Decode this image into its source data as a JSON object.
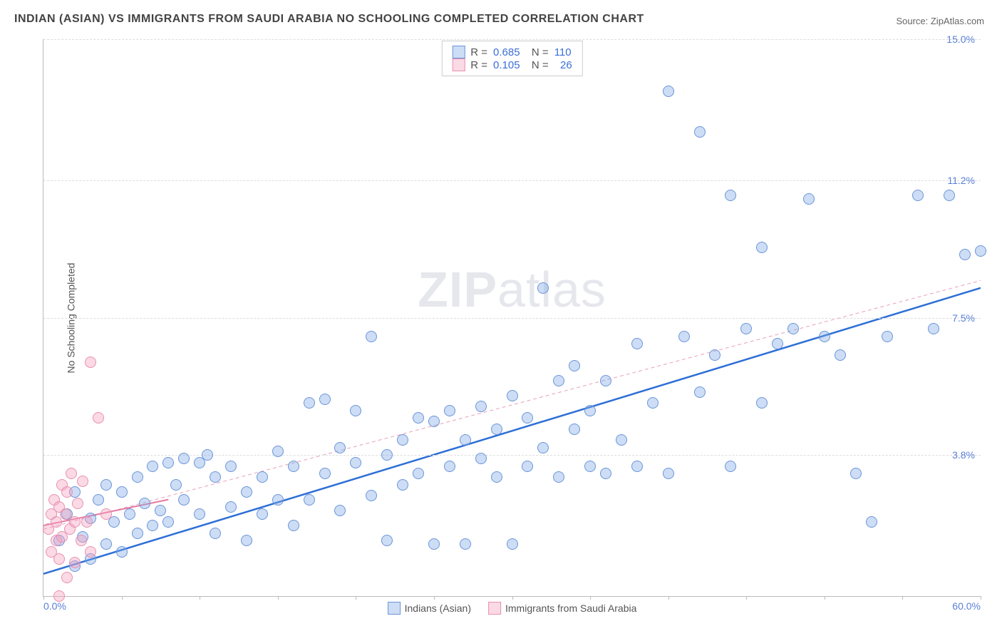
{
  "title": "INDIAN (ASIAN) VS IMMIGRANTS FROM SAUDI ARABIA NO SCHOOLING COMPLETED CORRELATION CHART",
  "source": "Source: ZipAtlas.com",
  "ylabel": "No Schooling Completed",
  "watermark_bold": "ZIP",
  "watermark_light": "atlas",
  "chart": {
    "type": "scatter",
    "xlim": [
      0,
      60
    ],
    "ylim": [
      0,
      15
    ],
    "yticks": [
      {
        "value": 3.8,
        "label": "3.8%"
      },
      {
        "value": 7.5,
        "label": "7.5%"
      },
      {
        "value": 11.2,
        "label": "11.2%"
      },
      {
        "value": 15.0,
        "label": "15.0%"
      }
    ],
    "xtick_left": "0.0%",
    "xtick_right": "60.0%",
    "background_color": "#ffffff",
    "grid_color": "#dddddd",
    "series": [
      {
        "name": "Indians (Asian)",
        "color_fill": "#9ab8e8",
        "color_stroke": "#6a95d8",
        "marker_size": 16,
        "R": "0.685",
        "N": "110",
        "regression": {
          "x1": 0,
          "y1": 0.6,
          "x2": 60,
          "y2": 8.3,
          "stroke": "#2d6fd6",
          "width": 2.5,
          "dash": "none"
        },
        "regression_ext": {
          "x1": 0,
          "y1": 1.8,
          "x2": 60,
          "y2": 8.5,
          "stroke": "#e8a0b8",
          "width": 1,
          "dash": "5,4"
        },
        "points": [
          [
            1,
            1.5
          ],
          [
            1.5,
            2.2
          ],
          [
            2,
            0.8
          ],
          [
            2,
            2.8
          ],
          [
            2.5,
            1.6
          ],
          [
            3,
            2.1
          ],
          [
            3,
            1.0
          ],
          [
            3.5,
            2.6
          ],
          [
            4,
            1.4
          ],
          [
            4,
            3.0
          ],
          [
            4.5,
            2.0
          ],
          [
            5,
            1.2
          ],
          [
            5,
            2.8
          ],
          [
            5.5,
            2.2
          ],
          [
            6,
            1.7
          ],
          [
            6,
            3.2
          ],
          [
            6.5,
            2.5
          ],
          [
            7,
            1.9
          ],
          [
            7,
            3.5
          ],
          [
            7.5,
            2.3
          ],
          [
            8,
            3.6
          ],
          [
            8,
            2.0
          ],
          [
            8.5,
            3.0
          ],
          [
            9,
            2.6
          ],
          [
            9,
            3.7
          ],
          [
            10,
            3.6
          ],
          [
            10,
            2.2
          ],
          [
            10.5,
            3.8
          ],
          [
            11,
            1.7
          ],
          [
            11,
            3.2
          ],
          [
            12,
            2.4
          ],
          [
            12,
            3.5
          ],
          [
            13,
            2.8
          ],
          [
            13,
            1.5
          ],
          [
            14,
            3.2
          ],
          [
            14,
            2.2
          ],
          [
            15,
            2.6
          ],
          [
            15,
            3.9
          ],
          [
            16,
            1.9
          ],
          [
            16,
            3.5
          ],
          [
            17,
            5.2
          ],
          [
            17,
            2.6
          ],
          [
            18,
            3.3
          ],
          [
            18,
            5.3
          ],
          [
            19,
            2.3
          ],
          [
            19,
            4.0
          ],
          [
            20,
            3.6
          ],
          [
            20,
            5.0
          ],
          [
            21,
            7.0
          ],
          [
            21,
            2.7
          ],
          [
            22,
            3.8
          ],
          [
            22,
            1.5
          ],
          [
            23,
            4.2
          ],
          [
            23,
            3.0
          ],
          [
            24,
            4.8
          ],
          [
            24,
            3.3
          ],
          [
            25,
            1.4
          ],
          [
            25,
            4.7
          ],
          [
            26,
            5.0
          ],
          [
            26,
            3.5
          ],
          [
            27,
            4.2
          ],
          [
            27,
            1.4
          ],
          [
            28,
            5.1
          ],
          [
            28,
            3.7
          ],
          [
            29,
            4.5
          ],
          [
            29,
            3.2
          ],
          [
            30,
            5.4
          ],
          [
            30,
            1.4
          ],
          [
            31,
            4.8
          ],
          [
            31,
            3.5
          ],
          [
            32,
            8.3
          ],
          [
            32,
            4.0
          ],
          [
            33,
            5.8
          ],
          [
            33,
            3.2
          ],
          [
            34,
            4.5
          ],
          [
            34,
            6.2
          ],
          [
            35,
            3.5
          ],
          [
            35,
            5.0
          ],
          [
            36,
            3.3
          ],
          [
            36,
            5.8
          ],
          [
            37,
            4.2
          ],
          [
            38,
            6.8
          ],
          [
            38,
            3.5
          ],
          [
            39,
            5.2
          ],
          [
            40,
            13.6
          ],
          [
            40,
            3.3
          ],
          [
            41,
            7.0
          ],
          [
            42,
            5.5
          ],
          [
            42,
            12.5
          ],
          [
            43,
            6.5
          ],
          [
            44,
            10.8
          ],
          [
            44,
            3.5
          ],
          [
            45,
            7.2
          ],
          [
            46,
            5.2
          ],
          [
            46,
            9.4
          ],
          [
            47,
            6.8
          ],
          [
            48,
            7.2
          ],
          [
            49,
            10.7
          ],
          [
            50,
            7.0
          ],
          [
            51,
            6.5
          ],
          [
            52,
            3.3
          ],
          [
            53,
            2.0
          ],
          [
            54,
            7.0
          ],
          [
            56,
            10.8
          ],
          [
            57,
            7.2
          ],
          [
            58,
            10.8
          ],
          [
            59,
            9.2
          ],
          [
            60,
            9.3
          ]
        ]
      },
      {
        "name": "Immigrants from Saudi Arabia",
        "color_fill": "#f5c0d2",
        "color_stroke": "#e890b0",
        "marker_size": 16,
        "R": "0.105",
        "N": "26",
        "regression": {
          "x1": 0,
          "y1": 1.9,
          "x2": 8,
          "y2": 2.6,
          "stroke": "#e47aa0",
          "width": 2,
          "dash": "none"
        },
        "points": [
          [
            0.3,
            1.8
          ],
          [
            0.5,
            2.2
          ],
          [
            0.5,
            1.2
          ],
          [
            0.7,
            2.6
          ],
          [
            0.8,
            1.5
          ],
          [
            0.8,
            2.0
          ],
          [
            1.0,
            2.4
          ],
          [
            1.0,
            1.0
          ],
          [
            1.2,
            3.0
          ],
          [
            1.2,
            1.6
          ],
          [
            1.4,
            2.2
          ],
          [
            1.5,
            0.5
          ],
          [
            1.5,
            2.8
          ],
          [
            1.7,
            1.8
          ],
          [
            1.8,
            3.3
          ],
          [
            2.0,
            2.0
          ],
          [
            2.0,
            0.9
          ],
          [
            2.2,
            2.5
          ],
          [
            2.4,
            1.5
          ],
          [
            2.5,
            3.1
          ],
          [
            2.8,
            2.0
          ],
          [
            3.0,
            6.3
          ],
          [
            3.0,
            1.2
          ],
          [
            3.5,
            4.8
          ],
          [
            4.0,
            2.2
          ],
          [
            1.0,
            0.0
          ]
        ]
      }
    ],
    "legend_bottom": [
      {
        "swatch": "blue",
        "label": "Indians (Asian)"
      },
      {
        "swatch": "pink",
        "label": "Immigrants from Saudi Arabia"
      }
    ]
  }
}
